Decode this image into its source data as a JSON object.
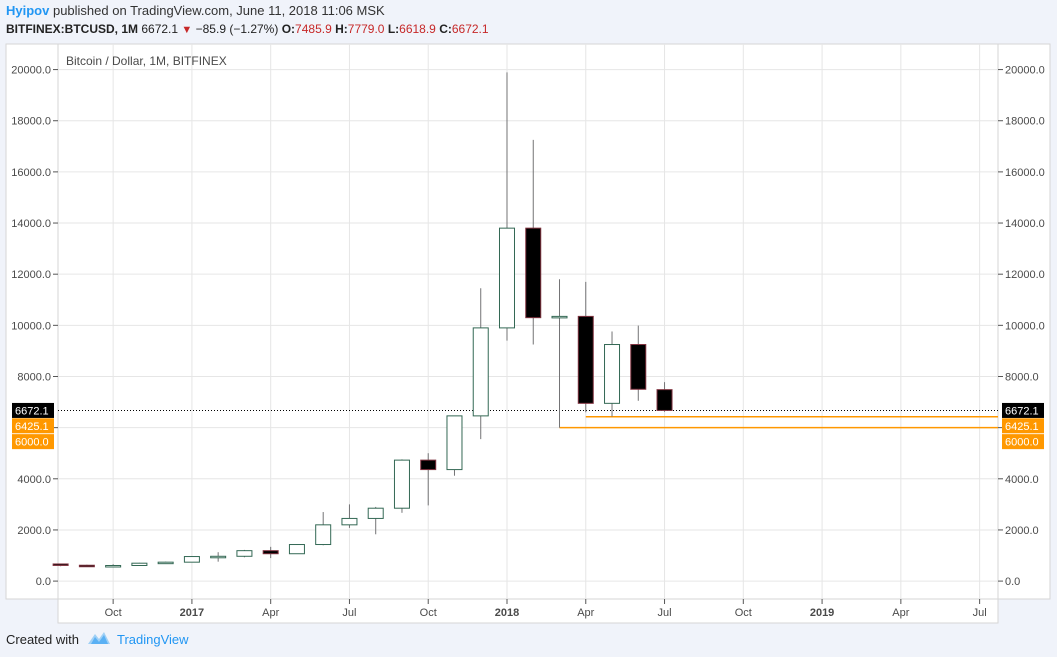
{
  "header": {
    "author": "Hyipov",
    "published_text": "published on TradingView.com, June 11, 2018 11:06 MSK",
    "symbol": "BITFINEX:BTCUSD, 1M",
    "last": "6672.1",
    "change": "−85.9 (−1.27%)",
    "o_label": "O:",
    "o_value": "7485.9",
    "h_label": "H:",
    "h_value": "7779.0",
    "l_label": "L:",
    "l_value": "6618.9",
    "c_label": "C:",
    "c_value": "6672.1"
  },
  "footer": {
    "created_with": "Created with",
    "brand": "TradingView"
  },
  "colors": {
    "up_fill": "#ffffff",
    "up_border": "#336854",
    "down_fill": "#000000",
    "down_border": "#7f323f",
    "wick": "#737375",
    "price_line": "#000000",
    "horizontal_line": "#ff9800",
    "grid": "#e6e6e6",
    "label_text": "#4a4a4a"
  },
  "chart_data": {
    "type": "candlestick",
    "title": "Bitcoin / Dollar, 1M, BITFINEX",
    "ylim": [
      -700,
      21000
    ],
    "y_ticks": [
      0,
      2000,
      4000,
      6000,
      8000,
      10000,
      12000,
      14000,
      16000,
      18000,
      20000
    ],
    "y_tick_labels": [
      "0.0",
      "2000.0",
      "4000.0",
      "6000.0",
      "8000.0",
      "10000.0",
      "12000.0",
      "14000.0",
      "16000.0",
      "18000.0",
      "20000.0"
    ],
    "x_ticks": [
      {
        "label": "Oct",
        "index": 2,
        "bold": false
      },
      {
        "label": "2017",
        "index": 5,
        "bold": true
      },
      {
        "label": "Apr",
        "index": 8,
        "bold": false
      },
      {
        "label": "Jul",
        "index": 11,
        "bold": false
      },
      {
        "label": "Oct",
        "index": 14,
        "bold": false
      },
      {
        "label": "2018",
        "index": 17,
        "bold": true
      },
      {
        "label": "Apr",
        "index": 20,
        "bold": false
      },
      {
        "label": "Jul",
        "index": 23,
        "bold": false
      },
      {
        "label": "Oct",
        "index": 26,
        "bold": false
      },
      {
        "label": "2019",
        "index": 29,
        "bold": true
      },
      {
        "label": "Apr",
        "index": 32,
        "bold": false
      },
      {
        "label": "Jul",
        "index": 35,
        "bold": false
      }
    ],
    "x_range": [
      -0.1,
      35.7
    ],
    "candles": [
      {
        "date": "2016-07",
        "o": 670,
        "h": 680,
        "l": 580,
        "c": 620
      },
      {
        "date": "2016-08",
        "o": 620,
        "h": 640,
        "l": 560,
        "c": 575
      },
      {
        "date": "2016-09",
        "o": 575,
        "h": 660,
        "l": 570,
        "c": 610
      },
      {
        "date": "2016-10",
        "o": 610,
        "h": 715,
        "l": 600,
        "c": 700
      },
      {
        "date": "2016-11",
        "o": 700,
        "h": 760,
        "l": 690,
        "c": 740
      },
      {
        "date": "2016-12",
        "o": 740,
        "h": 980,
        "l": 730,
        "c": 960
      },
      {
        "date": "2017-01",
        "o": 960,
        "h": 1130,
        "l": 760,
        "c": 970
      },
      {
        "date": "2017-02",
        "o": 970,
        "h": 1220,
        "l": 930,
        "c": 1190
      },
      {
        "date": "2017-03",
        "o": 1190,
        "h": 1340,
        "l": 900,
        "c": 1070
      },
      {
        "date": "2017-04",
        "o": 1070,
        "h": 1450,
        "l": 1060,
        "c": 1430
      },
      {
        "date": "2017-05",
        "o": 1430,
        "h": 2700,
        "l": 1400,
        "c": 2200
      },
      {
        "date": "2017-06",
        "o": 2200,
        "h": 3000,
        "l": 2080,
        "c": 2450
      },
      {
        "date": "2017-07",
        "o": 2450,
        "h": 2900,
        "l": 1830,
        "c": 2850
      },
      {
        "date": "2017-08",
        "o": 2850,
        "h": 4760,
        "l": 2670,
        "c": 4730
      },
      {
        "date": "2017-09",
        "o": 4730,
        "h": 5000,
        "l": 2960,
        "c": 4360
      },
      {
        "date": "2017-10",
        "o": 4360,
        "h": 6470,
        "l": 4120,
        "c": 6460
      },
      {
        "date": "2017-11",
        "o": 6460,
        "h": 11450,
        "l": 5550,
        "c": 9900
      },
      {
        "date": "2017-12",
        "o": 9900,
        "h": 19890,
        "l": 9400,
        "c": 13800
      },
      {
        "date": "2018-01",
        "o": 13800,
        "h": 17250,
        "l": 9250,
        "c": 10300
      },
      {
        "date": "2018-02",
        "o": 10300,
        "h": 11800,
        "l": 6000,
        "c": 10350
      },
      {
        "date": "2018-03",
        "o": 10350,
        "h": 11700,
        "l": 6600,
        "c": 6950
      },
      {
        "date": "2018-04",
        "o": 6950,
        "h": 9760,
        "l": 6430,
        "c": 9250
      },
      {
        "date": "2018-05",
        "o": 9250,
        "h": 9990,
        "l": 7050,
        "c": 7500
      },
      {
        "date": "2018-06",
        "o": 7485.9,
        "h": 7779.0,
        "l": 6618.9,
        "c": 6672.1
      }
    ],
    "last_price": {
      "value": 6672.1,
      "label": "6672.1"
    },
    "horizontal_lines": [
      {
        "value": 6425.1,
        "label": "6425.1",
        "start_index": 20
      },
      {
        "value": 6000.0,
        "label": "6000.0",
        "start_index": 19
      }
    ]
  }
}
